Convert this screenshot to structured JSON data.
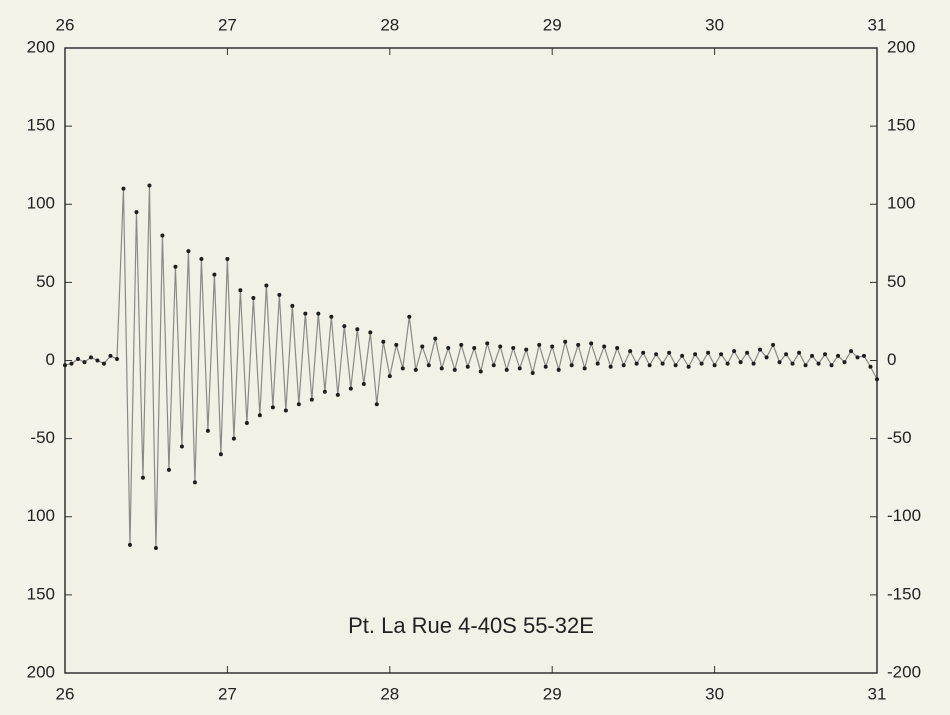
{
  "chart_data": {
    "type": "line",
    "annotation": "Pt. La Rue   4-40S  55-32E",
    "x": [
      26,
      26.04,
      26.08,
      26.12,
      26.16,
      26.2,
      26.24,
      26.28,
      26.32,
      26.36,
      26.4,
      26.44,
      26.48,
      26.52,
      26.56,
      26.6,
      26.64,
      26.68,
      26.72,
      26.76,
      26.8,
      26.84,
      26.88,
      26.92,
      26.96,
      27,
      27.04,
      27.08,
      27.12,
      27.16,
      27.2,
      27.24,
      27.28,
      27.32,
      27.36,
      27.4,
      27.44,
      27.48,
      27.52,
      27.56,
      27.6,
      27.64,
      27.68,
      27.72,
      27.76,
      27.8,
      27.84,
      27.88,
      27.92,
      27.96,
      28,
      28.04,
      28.08,
      28.12,
      28.16,
      28.2,
      28.24,
      28.28,
      28.32,
      28.36,
      28.4,
      28.44,
      28.48,
      28.52,
      28.56,
      28.6,
      28.64,
      28.68,
      28.72,
      28.76,
      28.8,
      28.84,
      28.88,
      28.92,
      28.96,
      29,
      29.04,
      29.08,
      29.12,
      29.16,
      29.2,
      29.24,
      29.28,
      29.32,
      29.36,
      29.4,
      29.44,
      29.48,
      29.52,
      29.56,
      29.6,
      29.64,
      29.68,
      29.72,
      29.76,
      29.8,
      29.84,
      29.88,
      29.92,
      29.96,
      30,
      30.04,
      30.08,
      30.12,
      30.16,
      30.2,
      30.24,
      30.28,
      30.32,
      30.36,
      30.4,
      30.44,
      30.48,
      30.52,
      30.56,
      30.6,
      30.64,
      30.68,
      30.72,
      30.76,
      30.8,
      30.84,
      30.88,
      30.92,
      30.96,
      31
    ],
    "values": [
      -3,
      -2,
      1,
      -1,
      2,
      0,
      -2,
      3,
      1,
      110,
      -118,
      95,
      -75,
      112,
      -120,
      80,
      -70,
      60,
      -55,
      70,
      -78,
      65,
      -45,
      55,
      -60,
      65,
      -50,
      45,
      -40,
      40,
      -35,
      48,
      -30,
      42,
      -32,
      35,
      -28,
      30,
      -25,
      30,
      -20,
      28,
      -22,
      22,
      -18,
      20,
      -15,
      18,
      -28,
      12,
      -10,
      10,
      -5,
      28,
      -6,
      9,
      -3,
      14,
      -5,
      8,
      -6,
      10,
      -4,
      8,
      -7,
      11,
      -3,
      9,
      -6,
      8,
      -5,
      7,
      -8,
      10,
      -4,
      9,
      -6,
      12,
      -3,
      10,
      -5,
      11,
      -2,
      9,
      -4,
      8,
      -3,
      6,
      -2,
      5,
      -3,
      4,
      -2,
      5,
      -3,
      3,
      -4,
      4,
      -2,
      5,
      -3,
      4,
      -2,
      6,
      -1,
      5,
      -2,
      7,
      2,
      10,
      -1,
      4,
      -2,
      5,
      -3,
      3,
      -2,
      4,
      -3,
      3,
      -1,
      6,
      2,
      3,
      -4,
      -12
    ],
    "line_color": "#8a8a86",
    "marker_color": "#1e1e1e",
    "xlim": [
      26,
      31
    ],
    "xticks": [
      26,
      27,
      28,
      29,
      30,
      31
    ],
    "ylim": [
      -200,
      200
    ],
    "yticks": [
      200,
      150,
      100,
      50,
      0,
      -50,
      {
        "value": -100,
        "label": "100"
      },
      {
        "value": -150,
        "label": "150"
      },
      {
        "value": -200,
        "label": "200"
      }
    ],
    "y2lim": [
      -200,
      200
    ],
    "y2ticks": [
      200,
      150,
      100,
      50,
      0,
      -50,
      -100,
      -150,
      -200
    ]
  }
}
